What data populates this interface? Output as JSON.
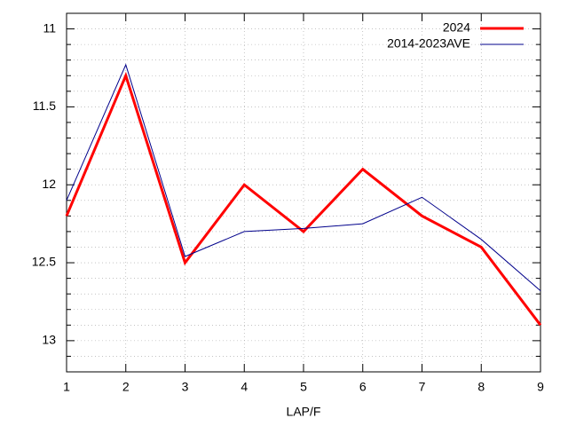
{
  "chart_data": {
    "type": "line",
    "x": [
      1,
      2,
      3,
      4,
      5,
      6,
      7,
      8,
      9
    ],
    "xlabel": "LAP/F",
    "xlim": [
      1,
      9
    ],
    "xticks": [
      1,
      2,
      3,
      4,
      5,
      6,
      7,
      8,
      9
    ],
    "ylim": [
      13.2,
      10.9
    ],
    "yticks": [
      11,
      11.5,
      12,
      12.5,
      13
    ],
    "yminorticks": [
      11.1,
      11.2,
      11.3,
      11.4,
      11.6,
      11.7,
      11.8,
      11.9,
      12.1,
      12.2,
      12.3,
      12.4,
      12.6,
      12.7,
      12.8,
      12.9,
      13.1
    ],
    "grid": true,
    "legend": "top-right",
    "series": [
      {
        "name": "2024",
        "color": "#ff0000",
        "width": 3,
        "values": [
          12.2,
          11.3,
          12.5,
          12.0,
          12.3,
          11.9,
          12.2,
          12.4,
          12.9
        ]
      },
      {
        "name": "2014-2023AVE",
        "color": "#00008b",
        "width": 1,
        "values": [
          12.1,
          11.23,
          12.46,
          12.3,
          12.28,
          12.25,
          12.08,
          12.35,
          12.68
        ]
      }
    ]
  }
}
